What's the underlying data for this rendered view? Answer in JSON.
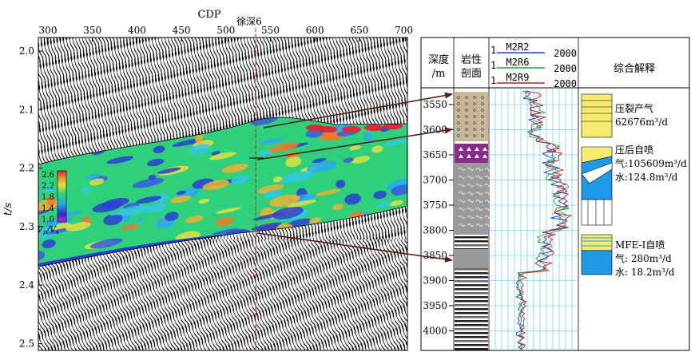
{
  "seismic": {
    "x_axis_title": "CDP",
    "x_ticks": [
      "300",
      "350",
      "400",
      "450",
      "500",
      "550",
      "600",
      "650",
      "700"
    ],
    "y_axis_title": "t/s",
    "y_ticks": [
      "2.0",
      "2.1",
      "2.2",
      "2.3",
      "2.4",
      "2.5"
    ],
    "well_label": "徐深6",
    "colorbar": {
      "ticks": [
        "2.6",
        "2.2",
        "1.8",
        "1.4",
        "1.0"
      ],
      "label": "Vp/Vs",
      "label_main": "V",
      "label_sub1": "p",
      "label_sep": "/V",
      "label_sub2": "s"
    },
    "colors": {
      "low": "#2f3fd8",
      "mid": "#2ad07a",
      "high": "#e8283a",
      "wiggle": "#000000",
      "well_line": "#b0302f",
      "arrow": "#5a1a1a"
    }
  },
  "well_log": {
    "header": {
      "depth": [
        "深度",
        "/m"
      ],
      "lithology": [
        "岩性",
        "剖面"
      ],
      "curves": [
        {
          "name": "M2R2",
          "min": "1",
          "max": "2000",
          "color": "#1a3fd0"
        },
        {
          "name": "M2R6",
          "min": "1",
          "max": "2000",
          "color": "#2aa040"
        },
        {
          "name": "M2R9",
          "min": "1",
          "max": "2000",
          "color": "#c02020"
        }
      ],
      "interpretation": "综合解释"
    },
    "depth_ticks": [
      "3550",
      "3600",
      "3650",
      "3700",
      "3750",
      "3800",
      "3850",
      "3900",
      "3950",
      "4000"
    ],
    "interpretations": [
      {
        "lines": [
          "压裂产气",
          "62676m³/d"
        ]
      },
      {
        "lines": [
          "压后自喷",
          "气:105609m³/d",
          "水:124.8m³/d"
        ]
      },
      {
        "lines": [
          "MFE-I自喷",
          "气: 280m³/d",
          "水: 18.2m³/d"
        ]
      }
    ]
  }
}
